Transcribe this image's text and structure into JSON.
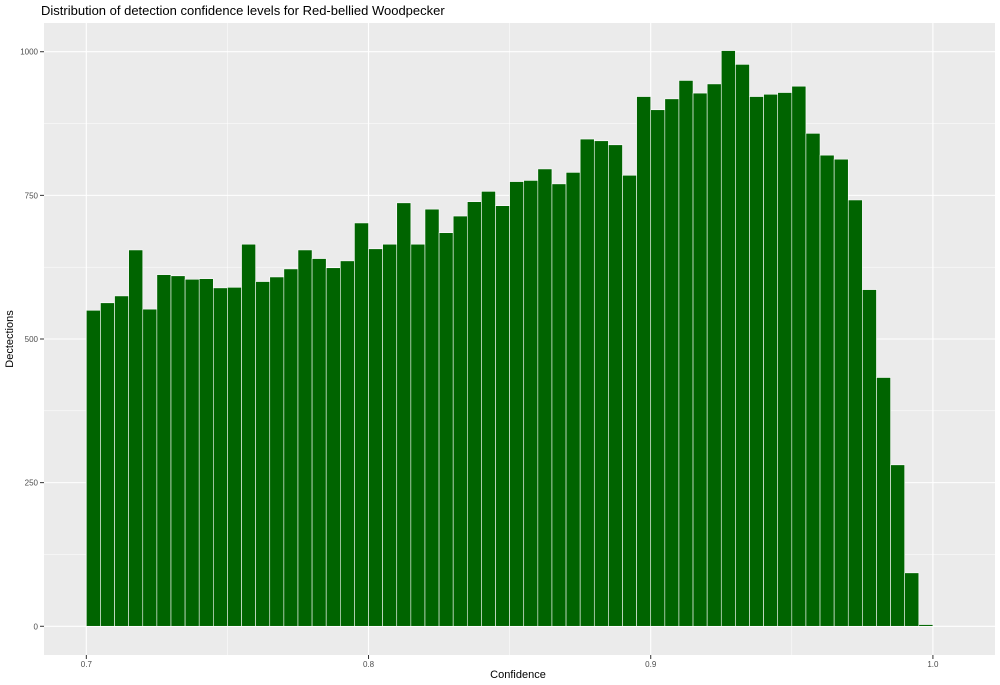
{
  "chart_data": {
    "type": "bar",
    "title": "Distribution of detection confidence levels for Red-bellied Woodpecker",
    "xlabel": "Confidence",
    "ylabel": "Dectections",
    "xlim": [
      0.685,
      1.022
    ],
    "ylim": [
      -50,
      1050
    ],
    "x_ticks": [
      "0.7",
      "0.8",
      "0.9",
      "1.0"
    ],
    "y_ticks": [
      "0",
      "250",
      "500",
      "750",
      "1000"
    ],
    "grid": true,
    "legend": "none",
    "bar_color": "#006400",
    "bar_outline": "#ffffff",
    "panel_background": "#ebebeb",
    "grid_color": "#ffffff",
    "bin_width": 0.005,
    "x": [
      0.7025,
      0.7075,
      0.7125,
      0.7175,
      0.7225,
      0.7275,
      0.7325,
      0.7375,
      0.7425,
      0.7475,
      0.7525,
      0.7575,
      0.7625,
      0.7675,
      0.7725,
      0.7775,
      0.7825,
      0.7875,
      0.7925,
      0.7975,
      0.8025,
      0.8075,
      0.8125,
      0.8175,
      0.8225,
      0.8275,
      0.8325,
      0.8375,
      0.8425,
      0.8475,
      0.8525,
      0.8575,
      0.8625,
      0.8675,
      0.8725,
      0.8775,
      0.8825,
      0.8875,
      0.8925,
      0.8975,
      0.9025,
      0.9075,
      0.9125,
      0.9175,
      0.9225,
      0.9275,
      0.9325,
      0.9375,
      0.9425,
      0.9475,
      0.9525,
      0.9575,
      0.9625,
      0.9675,
      0.9725,
      0.9775,
      0.9825,
      0.9875,
      0.9925,
      0.9975,
      1.0025
    ],
    "values": [
      550,
      563,
      575,
      655,
      552,
      612,
      610,
      604,
      605,
      589,
      590,
      665,
      600,
      608,
      622,
      655,
      640,
      624,
      636,
      702,
      657,
      665,
      737,
      665,
      726,
      685,
      714,
      739,
      757,
      732,
      774,
      776,
      796,
      770,
      790,
      848,
      845,
      838,
      785,
      922,
      899,
      918,
      950,
      928,
      944,
      1002,
      978,
      922,
      926,
      929,
      940,
      858,
      820,
      813,
      742,
      586,
      433,
      281,
      93,
      3,
      0
    ]
  }
}
